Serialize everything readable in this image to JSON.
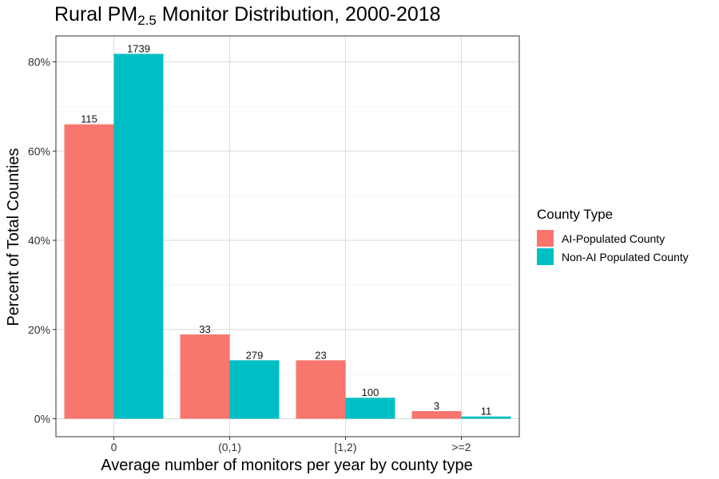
{
  "chart_data": {
    "type": "bar",
    "title_main": "Rural PM",
    "title_sub": "2.5",
    "title_rest": " Monitor Distribution, 2000-2018",
    "xlabel": "Average number of monitors per year by county type",
    "ylabel": "Percent of Total Counties",
    "categories": [
      "0",
      "(0,1)",
      "[1,2)",
      ">=2"
    ],
    "ylim": [
      0,
      0.85
    ],
    "yticks": [
      0,
      0.2,
      0.4,
      0.6,
      0.8
    ],
    "ytick_labels": [
      "0%",
      "20%",
      "40%",
      "60%",
      "80%"
    ],
    "grid": true,
    "legend_title": "County Type",
    "legend_position": "right",
    "series": [
      {
        "name": "AI-Populated County",
        "color": "#F8766D",
        "values": [
          0.66,
          0.189,
          0.131,
          0.017
        ],
        "labels": [
          "115",
          "33",
          "23",
          "3"
        ]
      },
      {
        "name": "Non-AI Populated County",
        "color": "#00BFC4",
        "values": [
          0.818,
          0.131,
          0.047,
          0.005
        ],
        "labels": [
          "1739",
          "279",
          "100",
          "11"
        ]
      }
    ]
  }
}
